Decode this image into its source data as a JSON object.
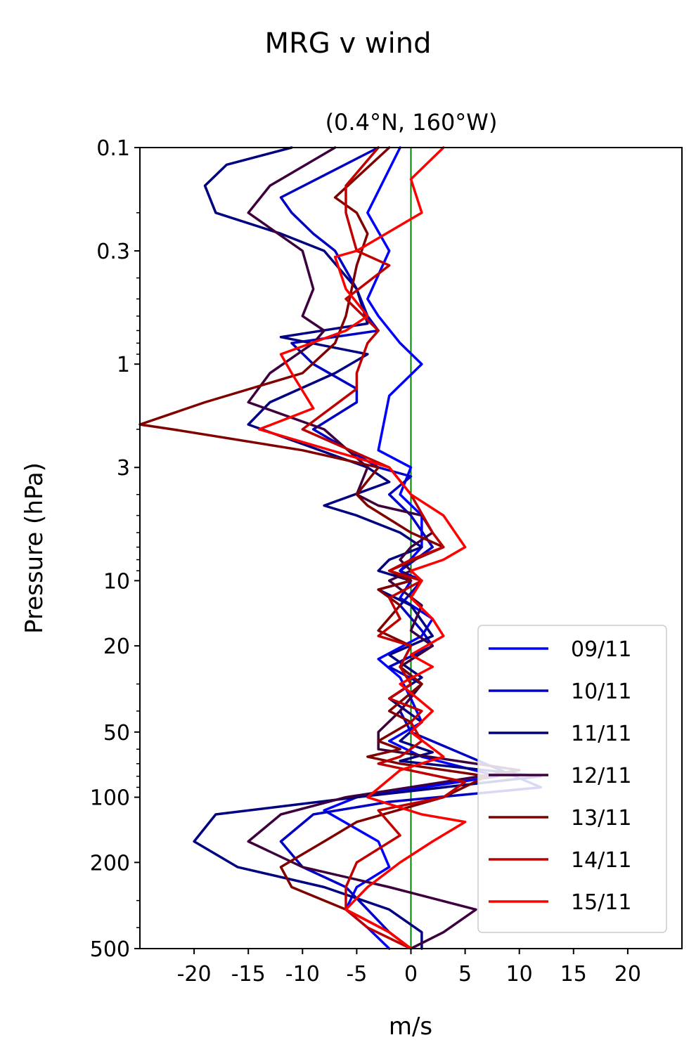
{
  "chart_data": {
    "type": "line",
    "suptitle": "MRG v wind",
    "title": "(0.4°N, 160°W)",
    "xlabel": "m/s",
    "ylabel": "Pressure (hPa)",
    "xlim": [
      -25,
      25
    ],
    "ylim": [
      500,
      0.1
    ],
    "yscale": "log",
    "xticks": [
      -20,
      -15,
      -10,
      -5,
      0,
      5,
      10,
      15,
      20
    ],
    "xtick_labels": [
      "-20",
      "-15",
      "-10",
      "-5",
      "0",
      "5",
      "10",
      "15",
      "20"
    ],
    "yticks": [
      0.1,
      0.3,
      1,
      3,
      10,
      20,
      50,
      100,
      200,
      500
    ],
    "ytick_labels": [
      "0.1",
      "0.3",
      "1",
      "3",
      "10",
      "20",
      "50",
      "100",
      "200",
      "500"
    ],
    "zero_line_color": "#008000",
    "legend_position": "lower right",
    "series": [
      {
        "name": "09/11",
        "color": "#0000ff",
        "points": [
          [
            -1,
            0.1
          ],
          [
            -4,
            0.2
          ],
          [
            -2,
            0.3
          ],
          [
            -4,
            0.5
          ],
          [
            -3,
            0.6
          ],
          [
            -1,
            0.8
          ],
          [
            1,
            1
          ],
          [
            -2,
            1.4
          ],
          [
            -3,
            2.5
          ],
          [
            0,
            3
          ],
          [
            -1,
            4
          ],
          [
            1,
            5
          ],
          [
            1,
            7
          ],
          [
            -1,
            9
          ],
          [
            0,
            10
          ],
          [
            -1,
            12
          ],
          [
            2,
            15
          ],
          [
            1,
            18
          ],
          [
            -3,
            23
          ],
          [
            -1,
            28
          ],
          [
            0,
            35
          ],
          [
            1,
            45
          ],
          [
            -2,
            55
          ],
          [
            1,
            65
          ],
          [
            8,
            80
          ],
          [
            -5,
            100
          ],
          [
            -8,
            115
          ],
          [
            -3,
            160
          ],
          [
            -2,
            210
          ],
          [
            -5,
            260
          ],
          [
            -6,
            330
          ],
          [
            -4,
            400
          ],
          [
            -2,
            500
          ]
        ]
      },
      {
        "name": "10/11",
        "color": "#0000c4",
        "points": [
          [
            -3,
            0.1
          ],
          [
            -12,
            0.17
          ],
          [
            -11,
            0.2
          ],
          [
            -9,
            0.25
          ],
          [
            -7,
            0.3
          ],
          [
            -5,
            0.45
          ],
          [
            -4,
            0.6
          ],
          [
            -3,
            0.7
          ],
          [
            -11,
            0.8
          ],
          [
            -9,
            1
          ],
          [
            -5,
            1.3
          ],
          [
            -5,
            1.5
          ],
          [
            -9,
            2
          ],
          [
            -3,
            3
          ],
          [
            0,
            3.3
          ],
          [
            -2,
            4
          ],
          [
            0,
            5
          ],
          [
            2,
            7
          ],
          [
            -1,
            9
          ],
          [
            1,
            10
          ],
          [
            -1,
            13
          ],
          [
            1,
            17
          ],
          [
            2,
            20
          ],
          [
            -2,
            25
          ],
          [
            1,
            30
          ],
          [
            -1,
            40
          ],
          [
            0,
            50
          ],
          [
            12,
            90
          ],
          [
            -2,
            105
          ],
          [
            -9,
            120
          ],
          [
            -12,
            160
          ],
          [
            -10,
            210
          ],
          [
            -6,
            260
          ],
          [
            -4,
            330
          ],
          [
            -2,
            420
          ],
          [
            0,
            500
          ]
        ]
      },
      {
        "name": "11/11",
        "color": "#000080",
        "points": [
          [
            -11,
            0.1
          ],
          [
            -17,
            0.12
          ],
          [
            -19,
            0.15
          ],
          [
            -18,
            0.2
          ],
          [
            -12,
            0.25
          ],
          [
            -8,
            0.3
          ],
          [
            -5,
            0.45
          ],
          [
            -4,
            0.65
          ],
          [
            -12,
            0.75
          ],
          [
            -4,
            0.9
          ],
          [
            -7,
            1.1
          ],
          [
            -13,
            1.5
          ],
          [
            -15,
            1.9
          ],
          [
            -4,
            3
          ],
          [
            -2,
            3.5
          ],
          [
            -8,
            4.5
          ],
          [
            -5,
            5
          ],
          [
            -1,
            6
          ],
          [
            1,
            7
          ],
          [
            -2,
            8
          ],
          [
            -3,
            9
          ],
          [
            0,
            10
          ],
          [
            -3,
            11
          ],
          [
            0,
            13
          ],
          [
            2,
            18
          ],
          [
            -2,
            22
          ],
          [
            1,
            28
          ],
          [
            -2,
            35
          ],
          [
            1,
            45
          ],
          [
            -1,
            55
          ],
          [
            2,
            62
          ],
          [
            -1,
            68
          ],
          [
            12,
            80
          ],
          [
            -5,
            100
          ],
          [
            -18,
            120
          ],
          [
            -20,
            160
          ],
          [
            -16,
            210
          ],
          [
            -8,
            260
          ],
          [
            -2,
            330
          ],
          [
            1,
            420
          ],
          [
            1,
            500
          ]
        ]
      },
      {
        "name": "12/11",
        "color": "#3d003d",
        "points": [
          [
            -7,
            0.1
          ],
          [
            -13,
            0.15
          ],
          [
            -15,
            0.2
          ],
          [
            -10,
            0.3
          ],
          [
            -9,
            0.45
          ],
          [
            -10,
            0.6
          ],
          [
            -8,
            0.7
          ],
          [
            -9,
            0.8
          ],
          [
            -13,
            1.1
          ],
          [
            -15,
            1.5
          ],
          [
            -8,
            2
          ],
          [
            -4,
            3
          ],
          [
            -5,
            4
          ],
          [
            -3,
            4.5
          ],
          [
            1,
            5
          ],
          [
            2,
            6
          ],
          [
            0,
            7
          ],
          [
            -1,
            8
          ],
          [
            0,
            9
          ],
          [
            -2,
            10
          ],
          [
            1,
            13
          ],
          [
            0,
            17
          ],
          [
            2,
            20
          ],
          [
            -1,
            25
          ],
          [
            1,
            30
          ],
          [
            -1,
            40
          ],
          [
            -3,
            50
          ],
          [
            -3,
            60
          ],
          [
            10,
            75
          ],
          [
            -6,
            100
          ],
          [
            -12,
            120
          ],
          [
            -15,
            160
          ],
          [
            -10,
            210
          ],
          [
            -2,
            260
          ],
          [
            6,
            330
          ],
          [
            3,
            420
          ],
          [
            0,
            500
          ]
        ]
      },
      {
        "name": "13/11",
        "color": "#800000",
        "points": [
          [
            -2,
            0.1
          ],
          [
            -7,
            0.17
          ],
          [
            -5,
            0.2
          ],
          [
            -4,
            0.25
          ],
          [
            -5,
            0.35
          ],
          [
            -6,
            0.6
          ],
          [
            -7,
            0.8
          ],
          [
            -10,
            1.1
          ],
          [
            -19,
            1.5
          ],
          [
            -25,
            1.9
          ],
          [
            -22,
            2
          ],
          [
            -10,
            2.5
          ],
          [
            -3,
            3
          ],
          [
            -5,
            4
          ],
          [
            -4,
            4.5
          ],
          [
            0,
            6
          ],
          [
            3,
            7
          ],
          [
            -2,
            9
          ],
          [
            0,
            10
          ],
          [
            -3,
            11
          ],
          [
            -1,
            13
          ],
          [
            -3,
            17
          ],
          [
            0,
            20
          ],
          [
            -1,
            25
          ],
          [
            1,
            30
          ],
          [
            -2,
            40
          ],
          [
            0,
            45
          ],
          [
            -3,
            55
          ],
          [
            -1,
            60
          ],
          [
            -4,
            65
          ],
          [
            -1,
            70
          ],
          [
            7,
            80
          ],
          [
            3,
            100
          ],
          [
            -5,
            130
          ],
          [
            -8,
            160
          ],
          [
            -12,
            210
          ],
          [
            -11,
            260
          ],
          [
            -6,
            330
          ],
          [
            -2,
            420
          ],
          [
            0,
            500
          ]
        ]
      },
      {
        "name": "14/11",
        "color": "#c00000",
        "points": [
          [
            -3,
            0.1
          ],
          [
            -6,
            0.15
          ],
          [
            -6,
            0.2
          ],
          [
            -5,
            0.3
          ],
          [
            -2,
            0.35
          ],
          [
            -6,
            0.5
          ],
          [
            -3,
            0.7
          ],
          [
            -4,
            0.8
          ],
          [
            -5,
            1.1
          ],
          [
            -5,
            1.3
          ],
          [
            -10,
            2
          ],
          [
            -2,
            3
          ],
          [
            0,
            4
          ],
          [
            2,
            6
          ],
          [
            3,
            7
          ],
          [
            0,
            8
          ],
          [
            -2,
            9
          ],
          [
            1,
            10
          ],
          [
            -2,
            12
          ],
          [
            -1,
            15
          ],
          [
            -3,
            18
          ],
          [
            0,
            20
          ],
          [
            -1,
            25
          ],
          [
            0,
            30
          ],
          [
            -2,
            35
          ],
          [
            1,
            40
          ],
          [
            0,
            45
          ],
          [
            1,
            55
          ],
          [
            -1,
            65
          ],
          [
            -3,
            70
          ],
          [
            5,
            85
          ],
          [
            3,
            100
          ],
          [
            -3,
            115
          ],
          [
            -1,
            150
          ],
          [
            -5,
            200
          ],
          [
            -6,
            260
          ],
          [
            -6,
            330
          ],
          [
            -4,
            400
          ],
          [
            0,
            500
          ]
        ]
      },
      {
        "name": "15/11",
        "color": "#ff0000",
        "points": [
          [
            3,
            0.1
          ],
          [
            0,
            0.14
          ],
          [
            1,
            0.2
          ],
          [
            -5,
            0.3
          ],
          [
            -7,
            0.32
          ],
          [
            -6,
            0.45
          ],
          [
            -4,
            0.6
          ],
          [
            -6,
            0.7
          ],
          [
            -12,
            0.9
          ],
          [
            -11,
            1.1
          ],
          [
            -9,
            1.6
          ],
          [
            -14,
            2
          ],
          [
            -2,
            3
          ],
          [
            0,
            4
          ],
          [
            3,
            5
          ],
          [
            5,
            7
          ],
          [
            3,
            8
          ],
          [
            0,
            9
          ],
          [
            1,
            10
          ],
          [
            0,
            12
          ],
          [
            2,
            15
          ],
          [
            3,
            18
          ],
          [
            0,
            22
          ],
          [
            2,
            25
          ],
          [
            -1,
            30
          ],
          [
            2,
            40
          ],
          [
            0,
            50
          ],
          [
            3,
            65
          ],
          [
            -1,
            75
          ],
          [
            -4,
            100
          ],
          [
            1,
            120
          ],
          [
            5,
            130
          ],
          [
            2,
            160
          ],
          [
            -1,
            200
          ],
          [
            -4,
            260
          ],
          [
            -6,
            330
          ],
          [
            -2,
            420
          ],
          [
            0,
            500
          ]
        ]
      }
    ]
  }
}
